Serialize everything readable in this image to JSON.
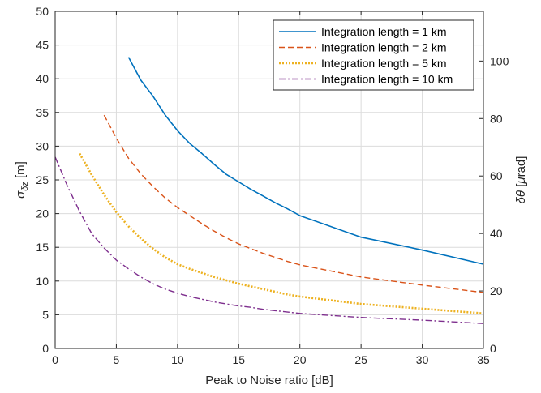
{
  "chart_data": {
    "type": "line",
    "title": "",
    "xlabel": "Peak to Noise ratio [dB]",
    "ylabel_left": {
      "symbol": "σ",
      "subscript": "δz",
      "unit": " [m]"
    },
    "ylabel_right": {
      "symbol": "δθ",
      "unit": " [",
      "mu": "μ",
      "unit_end": "rad]"
    },
    "xlim": [
      0,
      35
    ],
    "ylim_left": [
      0,
      50
    ],
    "ylim_right": [
      0,
      117.3
    ],
    "x_ticks": [
      0,
      5,
      10,
      15,
      20,
      25,
      30,
      35
    ],
    "y_ticks_left": [
      0,
      5,
      10,
      15,
      20,
      25,
      30,
      35,
      40,
      45,
      50
    ],
    "y_ticks_right": [
      0,
      20,
      40,
      60,
      80,
      100
    ],
    "grid": true,
    "legend_position": "top-right",
    "series": [
      {
        "name": "Integration length = 1 km",
        "color": "#0072bd",
        "style": "solid",
        "x": [
          6,
          7,
          8,
          9,
          10,
          11,
          12,
          13,
          14,
          15,
          16,
          17,
          18,
          19,
          20,
          25,
          30,
          35
        ],
        "y": [
          43.2,
          39.8,
          37.4,
          34.6,
          32.3,
          30.4,
          28.9,
          27.3,
          25.8,
          24.7,
          23.6,
          22.6,
          21.6,
          20.7,
          19.7,
          16.5,
          14.6,
          12.5
        ]
      },
      {
        "name": "Integration length = 2 km",
        "color": "#d95319",
        "style": "dashed",
        "x": [
          4,
          5,
          6,
          7,
          8,
          9,
          10,
          11,
          12,
          13,
          14,
          15,
          16,
          17,
          18,
          19,
          20,
          25,
          30,
          35
        ],
        "y": [
          34.6,
          31.2,
          28.2,
          25.9,
          24.0,
          22.3,
          20.9,
          19.7,
          18.5,
          17.4,
          16.4,
          15.5,
          14.8,
          14.1,
          13.5,
          12.9,
          12.4,
          10.6,
          9.4,
          8.3
        ]
      },
      {
        "name": "Integration length = 5 km",
        "color": "#edb120",
        "style": "dotted",
        "x": [
          2,
          3,
          4,
          5,
          6,
          7,
          8,
          9,
          10,
          11,
          12,
          13,
          14,
          15,
          16,
          17,
          18,
          19,
          20,
          25,
          30,
          35
        ],
        "y": [
          28.9,
          25.7,
          22.8,
          20.2,
          18.1,
          16.3,
          14.8,
          13.5,
          12.5,
          11.8,
          11.2,
          10.6,
          10.1,
          9.6,
          9.2,
          8.8,
          8.4,
          8.0,
          7.7,
          6.6,
          5.9,
          5.2
        ]
      },
      {
        "name": "Integration length = 10 km",
        "color": "#7e2f8e",
        "style": "dashdot",
        "x": [
          0,
          1,
          2,
          3,
          4,
          5,
          6,
          7,
          8,
          9,
          10,
          11,
          12,
          13,
          14,
          15,
          16,
          17,
          18,
          19,
          20,
          25,
          30,
          35
        ],
        "y": [
          28.4,
          24.1,
          20.3,
          17.0,
          14.9,
          13.1,
          11.8,
          10.6,
          9.6,
          8.8,
          8.2,
          7.7,
          7.3,
          6.9,
          6.6,
          6.3,
          6.1,
          5.8,
          5.6,
          5.4,
          5.2,
          4.6,
          4.2,
          3.7
        ]
      }
    ]
  }
}
